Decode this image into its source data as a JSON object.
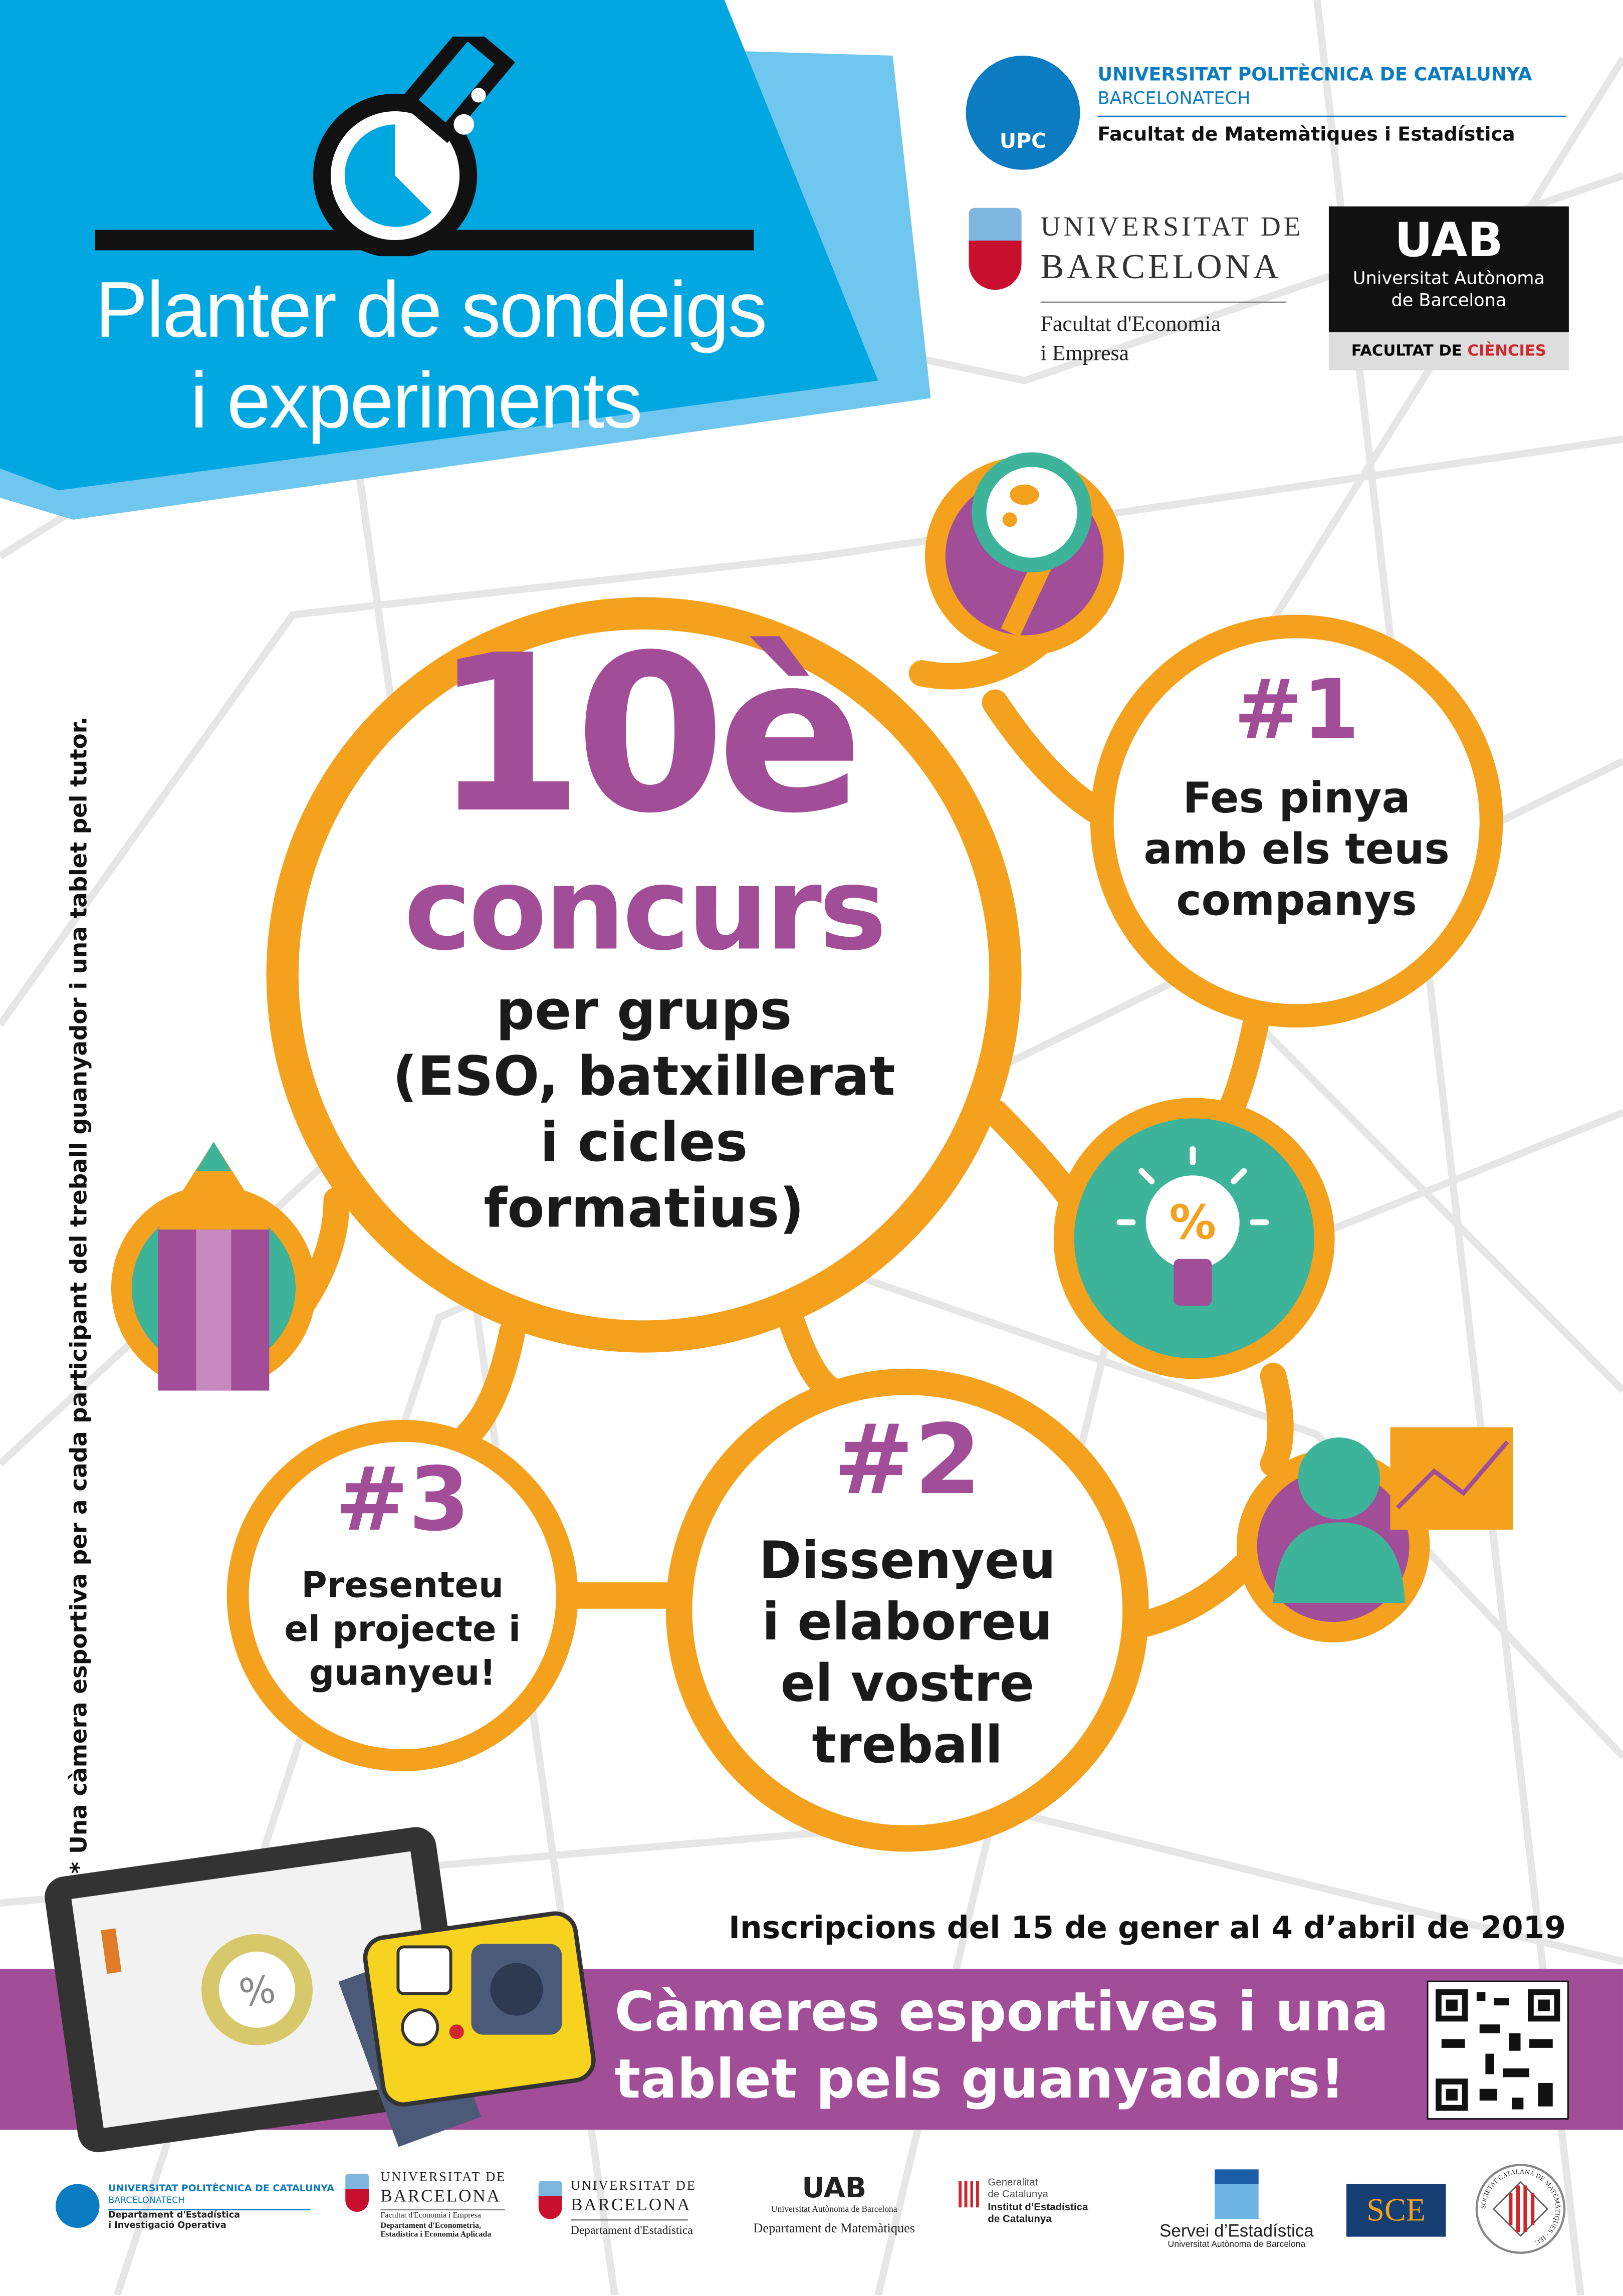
{
  "header": {
    "title_line1": "Planter de sondeigs",
    "title_line2": "i experiments",
    "flask_icon": "flask-icon"
  },
  "logos_top": {
    "upc": {
      "badge": "UPC",
      "name": "UNIVERSITAT POLITÈCNICA DE CATALUNYA",
      "sub": "BARCELONATECH",
      "faculty": "Facultat de Matemàtiques i Estadística"
    },
    "ub": {
      "name1": "UNIVERSITAT DE",
      "name2": "BARCELONA",
      "faculty1": "Facultat d'Economia",
      "faculty2": "i Empresa"
    },
    "uab": {
      "mark": "UAB",
      "name1": "Universitat Autònoma",
      "name2": "de Barcelona",
      "faculty_prefix": "FACULTAT DE ",
      "faculty_accent": "CIÈNCIES"
    }
  },
  "side_note": "* Una càmera esportiva per a cada participant del treball guanyador i una tablet pel tutor.",
  "main": {
    "edition": "10è",
    "contest": "concurs",
    "groups": [
      "per grups",
      "(ESO, batxillerat",
      "i cicles",
      "formatius)"
    ]
  },
  "steps": [
    {
      "num": "#1",
      "lines": [
        "Fes pinya",
        "amb els teus",
        "companys"
      ]
    },
    {
      "num": "#2",
      "lines": [
        "Dissenyeu",
        "i elaboreu",
        "el vostre",
        "treball"
      ]
    },
    {
      "num": "#3",
      "lines": [
        "Presenteu",
        "el projecte i",
        "guanyeu!"
      ]
    }
  ],
  "icons": [
    "magnifier-icon",
    "lightbulb-percent-icon",
    "pencil-icon",
    "person-chart-icon",
    "tablet-icon",
    "camera-icon",
    "qr-code"
  ],
  "percent_symbol": "%",
  "registration": "Inscripcions del 15 de gener al 4 d’abril de 2019",
  "prize": {
    "line1": "Càmeres esportives i una",
    "line2": "tablet pels guanyadors!"
  },
  "colors": {
    "orange": "#f4a11d",
    "purple": "#a24d98",
    "teal": "#3db39a",
    "blue": "#00a7e1",
    "light_blue": "#6fc6ee"
  },
  "footer": [
    {
      "l1": "UNIVERSITAT POLITÈCNICA DE CATALUNYA",
      "l2": "BARCELONATECH",
      "l3": "Departament d'Estadística",
      "l4": "i Investigació Operativa"
    },
    {
      "l1": "UNIVERSITAT DE",
      "l2": "BARCELONA",
      "l3": "Facultat d'Economia i Empresa",
      "l4": "Departament d'Econometria,",
      "l5": "Estadística i Economia Aplicada"
    },
    {
      "l1": "UNIVERSITAT DE",
      "l2": "BARCELONA",
      "l3": "Departament d'Estadística"
    },
    {
      "l1": "UAB",
      "l2": "Universitat Autònoma de Barcelona",
      "l3": "Departament de Matemàtiques"
    },
    {
      "l1": "Generalitat",
      "l2": "de Catalunya",
      "l3": "Institut d’Estadística",
      "l4": "de Catalunya"
    },
    {
      "l1": "Servei d’Estadística",
      "l2": "Universitat Autònoma de Barcelona"
    },
    {
      "l1": "SCE"
    },
    {
      "l1": "SOCIETAT CATALANA DE MATEMÀTIQUES · IEC"
    }
  ]
}
